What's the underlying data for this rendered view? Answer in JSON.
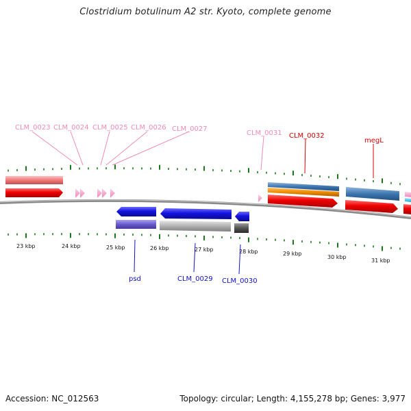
{
  "title": "Clostridium botulinum A2 str. Kyoto, complete genome",
  "footer": {
    "accession": "Accession: NC_012563",
    "summary": "Topology: circular; Length: 4,155,278 bp; Genes: 3,977"
  },
  "scale": {
    "labels": [
      "23 kbp",
      "24 kbp",
      "25 kbp",
      "26 kbp",
      "27 kbp",
      "28 kbp",
      "29 kbp",
      "30 kbp",
      "31 kbp"
    ]
  },
  "genes_top": [
    {
      "name": "CLM_0023",
      "color": "#f08ab8"
    },
    {
      "name": "CLM_0024",
      "color": "#f08ab8"
    },
    {
      "name": "CLM_0025",
      "color": "#f08ab8"
    },
    {
      "name": "CLM_0026",
      "color": "#f08ab8"
    },
    {
      "name": "CLM_0027",
      "color": "#f08ab8"
    },
    {
      "name": "CLM_0031",
      "color": "#f08ab8"
    },
    {
      "name": "CLM_0032",
      "color": "#d40000"
    },
    {
      "name": "megL",
      "color": "#d40000"
    }
  ],
  "genes_bottom": [
    {
      "name": "psd",
      "color": "#1010cc"
    },
    {
      "name": "CLM_0029",
      "color": "#1010cc"
    },
    {
      "name": "CLM_0030",
      "color": "#1010cc"
    }
  ],
  "colors": {
    "backbone": "#6d6d6d",
    "tick": "#1a7a1a",
    "cds_forward": "#e60000",
    "cds_reverse": "#1414e0",
    "rrna_like": "#f07878",
    "small_feature": "#f4a0cc",
    "orange_feature": "#f08c00",
    "steel_feature": "#3d76b0",
    "purple_feature": "#6a5acd",
    "gray_feature": "#a8a8a8",
    "dark_feature": "#555555"
  }
}
